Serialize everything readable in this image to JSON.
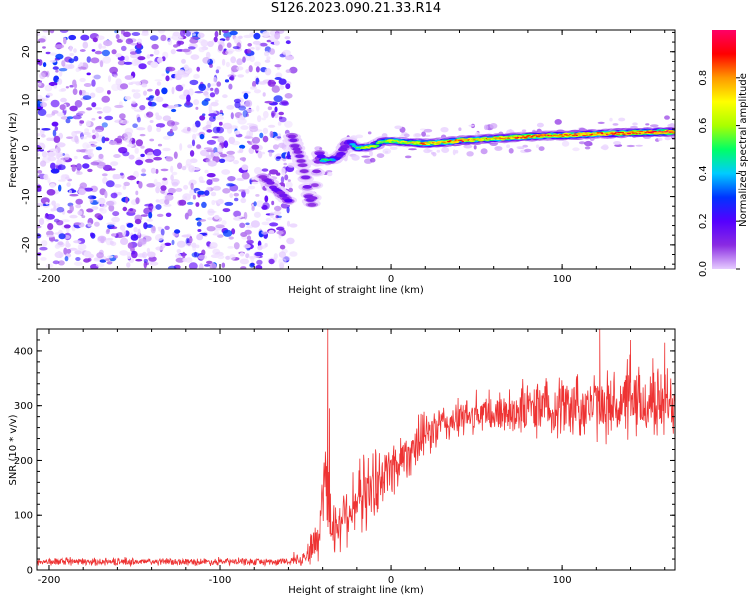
{
  "title": "S126.2023.090.21.33.R14",
  "colors": {
    "snr_line": "#ee3333",
    "axis": "#000000"
  },
  "chart_data": [
    {
      "type": "heatmap",
      "xlabel": "Height of straight line (km)",
      "ylabel": "Frequency (Hz)",
      "xlim": [
        -207,
        166
      ],
      "ylim": [
        -25,
        24.5
      ],
      "xticks": [
        -200,
        -100,
        0,
        100
      ],
      "xtick_labels": [
        "-200",
        "-100",
        "0",
        "100"
      ],
      "yticks": [
        -20,
        -10,
        0,
        10,
        20
      ],
      "ytick_labels": [
        "-20",
        "-10",
        "0",
        "10",
        "20"
      ],
      "colorbar": {
        "label": "Normalized spectral amplitude",
        "range": [
          0,
          1
        ],
        "ticks": [
          0.0,
          0.2,
          0.4,
          0.6,
          0.8
        ],
        "tick_labels": [
          "0.0",
          "0.2",
          "0.4",
          "0.6",
          "0.8"
        ],
        "colormap": [
          "#ffffff",
          "#e6ccff",
          "#8a2be2",
          "#5500ff",
          "#0033ff",
          "#00ccff",
          "#00ff66",
          "#aaff00",
          "#ffff00",
          "#ff9900",
          "#ff0000",
          "#ff0066"
        ]
      },
      "noise_region_x": [
        -207,
        -57
      ],
      "doppler_track": [
        {
          "x": -58,
          "f": 2.5,
          "a": 0.4
        },
        {
          "x": -55,
          "f": -0.5,
          "a": 0.4
        },
        {
          "x": -52,
          "f": -3,
          "a": 0.35
        },
        {
          "x": -50,
          "f": -6,
          "a": 0.35
        },
        {
          "x": -48,
          "f": -10,
          "a": 0.4
        },
        {
          "x": -46,
          "f": -12,
          "a": 0.35
        },
        {
          "x": -44,
          "f": -6,
          "a": 0.35
        },
        {
          "x": -42,
          "f": -1,
          "a": 0.4
        },
        {
          "x": -40,
          "f": -2.5,
          "a": 0.55
        },
        {
          "x": -35,
          "f": -2.5,
          "a": 0.55
        },
        {
          "x": -30,
          "f": -1.5,
          "a": 0.45
        },
        {
          "x": -25,
          "f": 1.5,
          "a": 0.45
        },
        {
          "x": -20,
          "f": 0,
          "a": 0.55
        },
        {
          "x": -15,
          "f": 0.2,
          "a": 0.75
        },
        {
          "x": -10,
          "f": 0.4,
          "a": 0.7
        },
        {
          "x": -5,
          "f": 1.5,
          "a": 0.6
        },
        {
          "x": 0,
          "f": 1.5,
          "a": 0.75
        },
        {
          "x": 10,
          "f": 1.2,
          "a": 0.7
        },
        {
          "x": 20,
          "f": 1.0,
          "a": 0.85
        },
        {
          "x": 30,
          "f": 1.2,
          "a": 0.8
        },
        {
          "x": 40,
          "f": 1.6,
          "a": 0.9
        },
        {
          "x": 50,
          "f": 1.8,
          "a": 0.85
        },
        {
          "x": 60,
          "f": 2.0,
          "a": 0.8
        },
        {
          "x": 70,
          "f": 2.2,
          "a": 0.85
        },
        {
          "x": 80,
          "f": 2.4,
          "a": 0.9
        },
        {
          "x": 90,
          "f": 2.6,
          "a": 0.9
        },
        {
          "x": 100,
          "f": 2.7,
          "a": 0.85
        },
        {
          "x": 110,
          "f": 2.8,
          "a": 0.9
        },
        {
          "x": 120,
          "f": 3.0,
          "a": 0.85
        },
        {
          "x": 130,
          "f": 3.1,
          "a": 0.9
        },
        {
          "x": 140,
          "f": 3.2,
          "a": 0.9
        },
        {
          "x": 150,
          "f": 3.3,
          "a": 0.95
        },
        {
          "x": 166,
          "f": 3.4,
          "a": 0.9
        }
      ],
      "branch_track": [
        {
          "x": -75,
          "f": -6,
          "a": 0.35
        },
        {
          "x": -67,
          "f": -8.5,
          "a": 0.4
        },
        {
          "x": -60,
          "f": -11,
          "a": 0.45
        }
      ]
    },
    {
      "type": "line",
      "xlabel": "Height of straight line (km)",
      "ylabel": "SNR (10 * v/v)",
      "xlim": [
        -207,
        166
      ],
      "ylim": [
        0,
        440
      ],
      "xticks": [
        -200,
        -100,
        0,
        100
      ],
      "xtick_labels": [
        "-200",
        "-100",
        "0",
        "100"
      ],
      "yticks": [
        0,
        100,
        200,
        300,
        400
      ],
      "ytick_labels": [
        "0",
        "100",
        "200",
        "300",
        "400"
      ],
      "series": [
        {
          "envelope": [
            {
              "x": -207,
              "mean": 15,
              "spread": 8
            },
            {
              "x": -60,
              "mean": 15,
              "spread": 8
            },
            {
              "x": -50,
              "mean": 25,
              "spread": 20
            },
            {
              "x": -42,
              "mean": 60,
              "spread": 60
            },
            {
              "x": -40,
              "mean": 150,
              "spread": 120
            },
            {
              "x": -38,
              "mean": 200,
              "spread": 120
            },
            {
              "x": -35,
              "mean": 70,
              "spread": 60
            },
            {
              "x": -25,
              "mean": 110,
              "spread": 70
            },
            {
              "x": -15,
              "mean": 140,
              "spread": 80
            },
            {
              "x": -5,
              "mean": 170,
              "spread": 70
            },
            {
              "x": 10,
              "mean": 215,
              "spread": 55
            },
            {
              "x": 20,
              "mean": 245,
              "spread": 50
            },
            {
              "x": 30,
              "mean": 265,
              "spread": 45
            },
            {
              "x": 45,
              "mean": 280,
              "spread": 40
            },
            {
              "x": 60,
              "mean": 285,
              "spread": 45
            },
            {
              "x": 80,
              "mean": 295,
              "spread": 60
            },
            {
              "x": 100,
              "mean": 300,
              "spread": 70
            },
            {
              "x": 130,
              "mean": 300,
              "spread": 75
            },
            {
              "x": 166,
              "mean": 305,
              "spread": 80
            }
          ],
          "spikes": [
            {
              "x": -37,
              "y": 440
            },
            {
              "x": -36,
              "y": 295
            },
            {
              "x": 122,
              "y": 440
            },
            {
              "x": 140,
              "y": 420
            },
            {
              "x": 160,
              "y": 415
            }
          ]
        }
      ]
    }
  ]
}
